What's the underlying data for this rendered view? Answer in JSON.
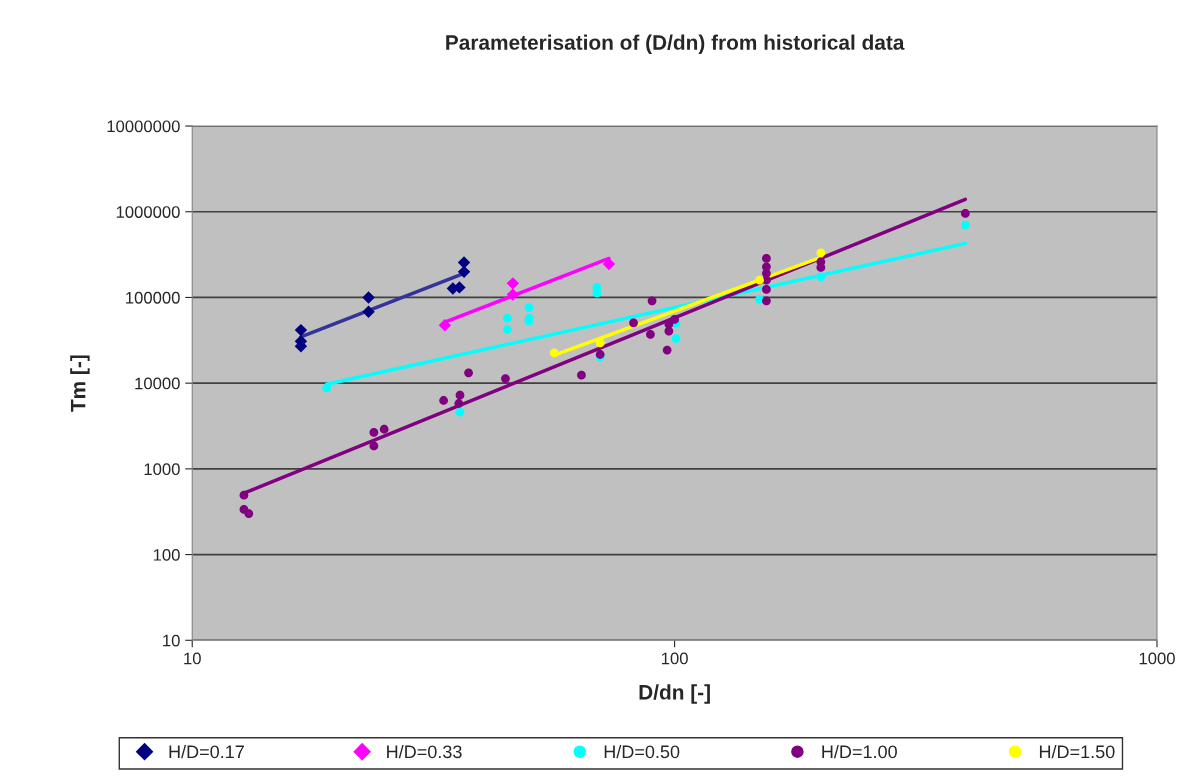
{
  "chart_data": {
    "type": "scatter",
    "title": "Parameterisation of (D/dn) from historical data",
    "xlabel": "D/dn [-]",
    "ylabel": "Tm [-]",
    "log": "xy",
    "grid": "y",
    "legend": "bottom",
    "xlim": [
      10,
      1000
    ],
    "xticks": [
      10,
      100,
      1000
    ],
    "ylim": [
      10,
      10000000
    ],
    "yticks": [
      10,
      100,
      1000,
      10000,
      100000,
      1000000,
      10000000
    ],
    "series": [
      {
        "name": "H/D=0.17",
        "color": "#000080",
        "marker": "diamond",
        "x": [
          16.8,
          16.8,
          16.8,
          23.2,
          23.2,
          34.7,
          35.8,
          36.6,
          36.6
        ],
        "values": [
          41600,
          30900,
          27000,
          100000,
          68000,
          127000,
          131000,
          256000,
          199000
        ]
      },
      {
        "name": "H/D=0.33",
        "color": "#ff00ff",
        "marker": "diamond",
        "x": [
          33.4,
          46.2,
          46.2,
          73.1
        ],
        "values": [
          47500,
          146000,
          108000,
          245000
        ]
      },
      {
        "name": "H/D=0.50",
        "color": "#00ffff",
        "marker": "circle",
        "x": [
          19.0,
          35.9,
          45.0,
          45.0,
          49.9,
          49.9,
          49.9,
          69.0,
          69.0,
          70.1,
          100.7,
          100.7,
          150,
          201,
          400.6
        ],
        "values": [
          8800,
          4600,
          57400,
          42300,
          76400,
          56900,
          53000,
          131000,
          113000,
          20300,
          49700,
          33200,
          94800,
          174000,
          698000
        ]
      },
      {
        "name": "H/D=1.00",
        "color": "#800080",
        "marker": "circle",
        "x": [
          12.8,
          12.8,
          13.1,
          23.8,
          23.8,
          25.0,
          33.2,
          35.9,
          35.7,
          37.4,
          44.6,
          64.1,
          70.1,
          82.2,
          89.8,
          89.1,
          96.5,
          97.3,
          97.3,
          100,
          155,
          155,
          155,
          155,
          155,
          155,
          201,
          201,
          400.6
        ],
        "values": [
          493,
          336,
          301,
          2660,
          1850,
          2900,
          6280,
          7240,
          5790,
          13200,
          11300,
          12400,
          21600,
          50600,
          91400,
          37000,
          24300,
          40500,
          48800,
          55400,
          285000,
          228000,
          191000,
          159000,
          124000,
          91400,
          261000,
          224000,
          957000
        ]
      },
      {
        "name": "H/D=1.50",
        "color": "#ffff00",
        "marker": "circle",
        "x": [
          56.3,
          70.1,
          150,
          201
        ],
        "values": [
          22600,
          29500,
          159000,
          332000
        ]
      },
      {
        "type": "line",
        "color": "#333399",
        "marker": "none",
        "x": [
          16.8,
          36.6
        ],
        "values": [
          34700,
          190500
        ]
      },
      {
        "type": "line",
        "color": "#ff00ff",
        "marker": "none",
        "x": [
          33.4,
          73.1
        ],
        "values": [
          51500,
          285000
        ]
      },
      {
        "type": "line",
        "color": "#00ffff",
        "marker": "none",
        "x": [
          19.0,
          400.6
        ],
        "values": [
          9730,
          427000
        ]
      },
      {
        "type": "line",
        "color": "#800080",
        "marker": "none",
        "x": [
          12.8,
          400.6
        ],
        "values": [
          520,
          1393000
        ]
      },
      {
        "type": "line",
        "color": "#ffff00",
        "marker": "none",
        "x": [
          56.3,
          201
        ],
        "values": [
          21200,
          293000
        ]
      }
    ]
  }
}
